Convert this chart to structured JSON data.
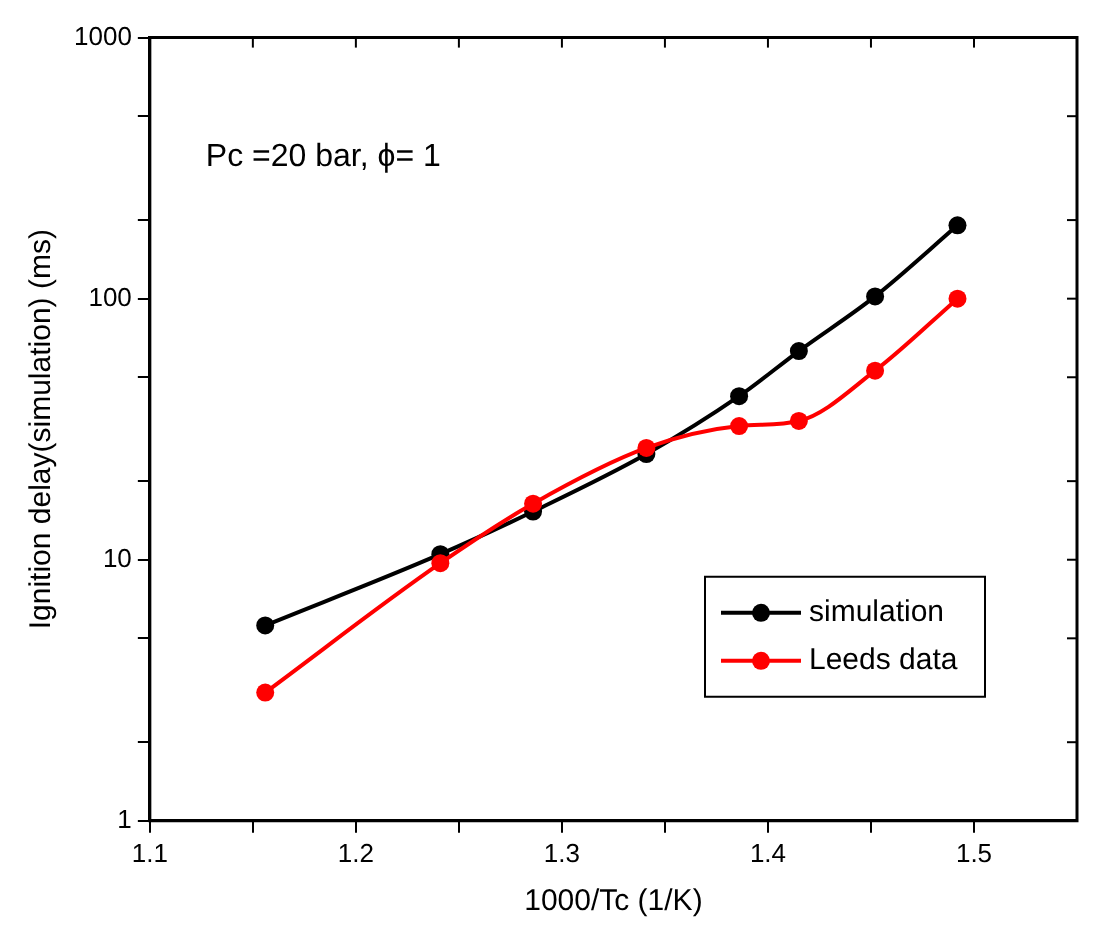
{
  "chart_data": {
    "type": "line",
    "xlabel": "1000/Tc (1/K)",
    "ylabel": "Ignition delay(simulation) (ms)",
    "annotations": [
      "Pc =20 bar, ϕ= 1"
    ],
    "x": [
      1.156,
      1.241,
      1.286,
      1.341,
      1.386,
      1.415,
      1.452,
      1.492
    ],
    "series": [
      {
        "name": "simulation",
        "color": "#000000",
        "values": [
          5.6,
          10.5,
          15.3,
          25.4,
          42.3,
          63,
          102,
          191
        ]
      },
      {
        "name": "Leeds data",
        "color": "#ff0000",
        "values": [
          3.1,
          9.7,
          16.4,
          26.8,
          32.5,
          34,
          53,
          100
        ]
      }
    ],
    "xlim": [
      1.1,
      1.55
    ],
    "xticks": [
      1.1,
      {
        "value": 1.15,
        "label": null
      },
      1.2,
      {
        "value": 1.25,
        "label": null
      },
      1.3,
      {
        "value": 1.35,
        "label": null
      },
      1.4,
      {
        "value": 1.45,
        "label": null
      },
      1.5
    ],
    "ylim": [
      1,
      1000
    ],
    "yticks": [
      1,
      {
        "value": 2,
        "label": null
      },
      {
        "value": 5,
        "label": null
      },
      10,
      {
        "value": 20,
        "label": null
      },
      {
        "value": 50,
        "label": null
      },
      100,
      {
        "value": 200,
        "label": null
      },
      {
        "value": 500,
        "label": null
      },
      1000
    ],
    "log": "y",
    "grid": false,
    "legend": "bottom right",
    "marker": "circle",
    "line_style": "solid"
  }
}
